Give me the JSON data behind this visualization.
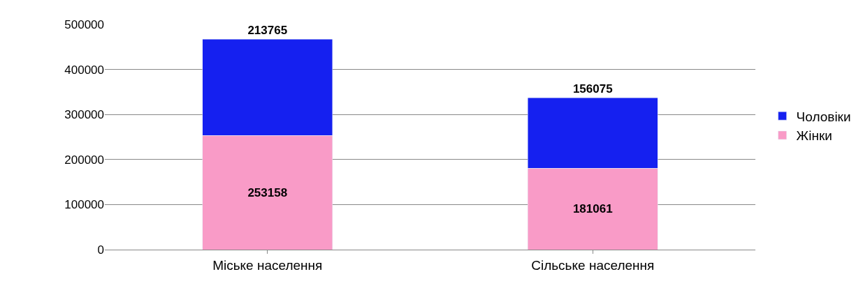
{
  "chart_data": {
    "type": "bar",
    "stacked": true,
    "categories": [
      "Міське населення",
      "Сільське населення"
    ],
    "series": [
      {
        "name": "Жінки",
        "color": "#f99bc7",
        "values": [
          253158,
          181061
        ]
      },
      {
        "name": "Чоловіки",
        "color": "#1520f0",
        "values": [
          213765,
          156075
        ]
      }
    ],
    "ylim": [
      0,
      500000
    ],
    "yticks": [
      0,
      100000,
      200000,
      300000,
      400000,
      500000
    ],
    "grid": "y",
    "legend": "right",
    "data_labels": true
  }
}
